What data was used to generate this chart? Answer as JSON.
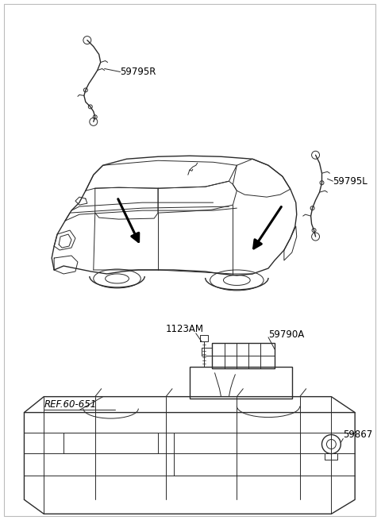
{
  "bg_color": "#ffffff",
  "border_color": "#cccccc",
  "label_59795R": "59795R",
  "label_59795L": "59795L",
  "label_1123AM": "1123AM",
  "label_59790A": "59790A",
  "label_ref": "REF.60-651",
  "label_59867": "59867",
  "label_fontsize": 8.5,
  "line_color": "#2a2a2a",
  "figsize": [
    4.8,
    6.55
  ],
  "dpi": 100
}
